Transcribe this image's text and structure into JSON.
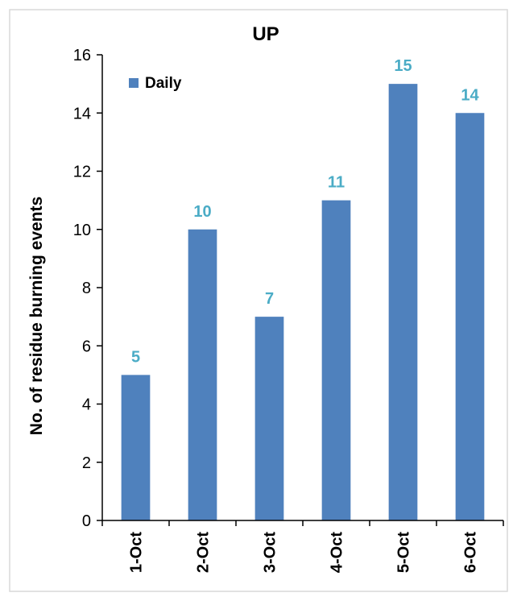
{
  "chart_data": {
    "type": "bar",
    "title": "UP",
    "xlabel": "",
    "ylabel": "No. of residue burning events",
    "categories": [
      "1-Oct",
      "2-Oct",
      "3-Oct",
      "4-Oct",
      "5-Oct",
      "6-Oct"
    ],
    "series": [
      {
        "name": "Daily",
        "values": [
          5,
          10,
          7,
          11,
          15,
          14
        ]
      }
    ],
    "ylim": [
      0,
      16
    ],
    "yticks": [
      0,
      2,
      4,
      6,
      8,
      10,
      12,
      14,
      16
    ],
    "grid": false,
    "legend": "top-left",
    "colors": {
      "bar": "#4F81BD",
      "data_label": "#4BACC6",
      "axis": "#000000",
      "frame": "#D9D9D9"
    }
  }
}
